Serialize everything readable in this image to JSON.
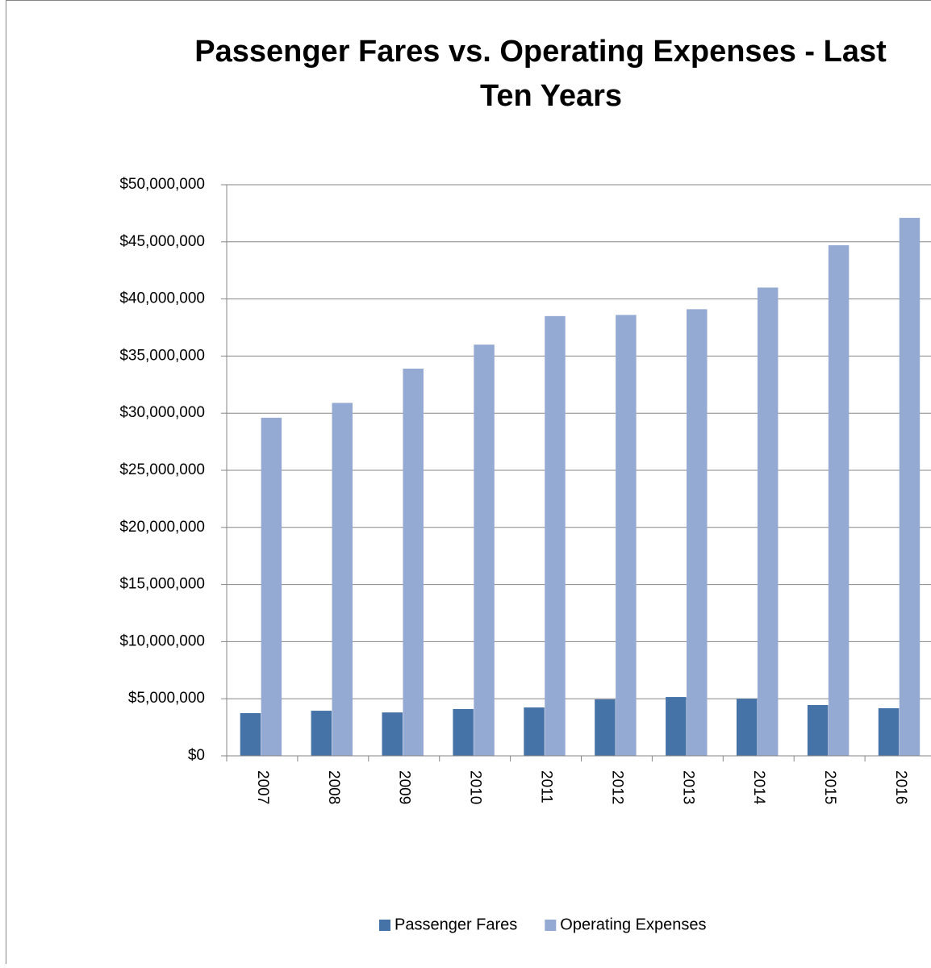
{
  "chart_data": {
    "type": "bar",
    "title": "Passenger Fares vs. Operating Expenses - Last Ten Years",
    "categories": [
      "2007",
      "2008",
      "2009",
      "2010",
      "2011",
      "2012",
      "2013",
      "2014",
      "2015",
      "2016"
    ],
    "series": [
      {
        "name": "Passenger Fares",
        "color": "#4572a7",
        "values": [
          3740000,
          3950000,
          3800000,
          4100000,
          4240000,
          4940000,
          5150000,
          5000000,
          4450000,
          4170000
        ]
      },
      {
        "name": "Operating Expenses",
        "color": "#95aad3",
        "values": [
          29600000,
          30900000,
          33900000,
          36000000,
          38500000,
          38600000,
          39100000,
          41000000,
          44700000,
          47100000
        ]
      }
    ],
    "ylim": [
      0,
      50000000
    ],
    "yticks": [
      {
        "value": 0,
        "label": "$0"
      },
      {
        "value": 5000000,
        "label": "$5,000,000"
      },
      {
        "value": 10000000,
        "label": "$10,000,000"
      },
      {
        "value": 15000000,
        "label": "$15,000,000"
      },
      {
        "value": 20000000,
        "label": "$20,000,000"
      },
      {
        "value": 25000000,
        "label": "$25,000,000"
      },
      {
        "value": 30000000,
        "label": "$30,000,000"
      },
      {
        "value": 35000000,
        "label": "$35,000,000"
      },
      {
        "value": 40000000,
        "label": "$40,000,000"
      },
      {
        "value": 45000000,
        "label": "$45,000,000"
      },
      {
        "value": 50000000,
        "label": "$50,000,000"
      }
    ],
    "grid": true,
    "legend": "bottom"
  }
}
